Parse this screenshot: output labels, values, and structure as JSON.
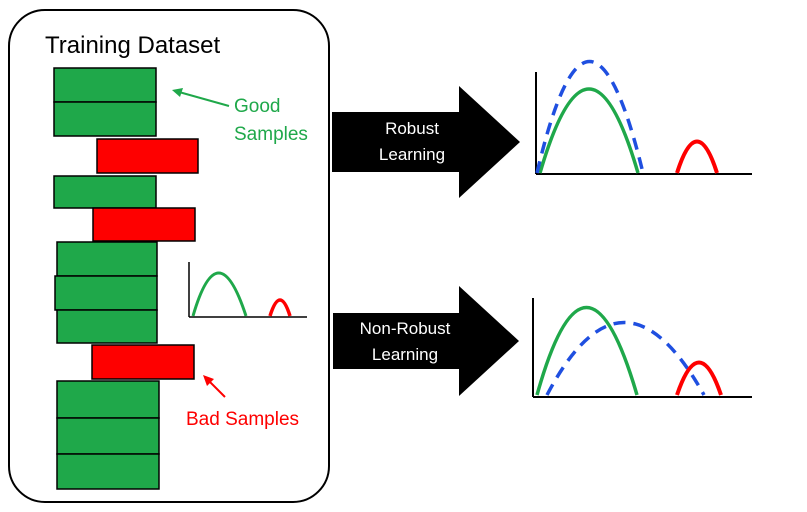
{
  "dataset": {
    "title": "Training Dataset",
    "good_label_line1": "Good",
    "good_label_line2": "Samples",
    "bad_label": "Bad Samples"
  },
  "robust": {
    "label_line1": "Robust",
    "label_line2": "Learning"
  },
  "non_robust": {
    "label_line1": "Non-Robust",
    "label_line2": "Learning"
  },
  "colors": {
    "good": "#1fa84a",
    "bad": "#fe0000",
    "model_fit": "#1f4fe0",
    "arrow": "#000000",
    "box_border": "#000000"
  }
}
